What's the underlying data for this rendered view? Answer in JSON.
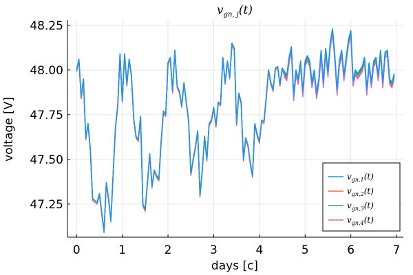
{
  "chart_data": {
    "type": "line",
    "title": "v_{gn, j}(t)",
    "title_display": "vgn, j(t)",
    "xlabel": "days [c]",
    "ylabel": "voltage [V]",
    "xlim": [
      -0.2,
      7.15
    ],
    "ylim": [
      47.065,
      48.28
    ],
    "xticks": [
      0,
      1,
      2,
      3,
      4,
      5,
      6,
      7
    ],
    "xtick_labels": [
      "0",
      "1",
      "2",
      "3",
      "4",
      "5",
      "6",
      "7"
    ],
    "yticks": [
      47.25,
      47.5,
      47.75,
      48.0,
      48.25
    ],
    "ytick_labels": [
      "47.25",
      "47.50",
      "47.75",
      "48.00",
      "48.25"
    ],
    "grid": true,
    "legend_position": "bottom-right",
    "x": [
      0,
      0.05,
      0.1,
      0.15,
      0.2,
      0.25,
      0.3,
      0.35,
      0.4,
      0.45,
      0.5,
      0.55,
      0.6,
      0.65,
      0.7,
      0.75,
      0.8,
      0.85,
      0.9,
      0.95,
      1.0,
      1.05,
      1.1,
      1.15,
      1.2,
      1.25,
      1.3,
      1.35,
      1.4,
      1.45,
      1.5,
      1.55,
      1.6,
      1.65,
      1.7,
      1.75,
      1.8,
      1.85,
      1.9,
      1.95,
      2.0,
      2.05,
      2.1,
      2.15,
      2.2,
      2.25,
      2.3,
      2.35,
      2.4,
      2.45,
      2.5,
      2.55,
      2.6,
      2.65,
      2.7,
      2.75,
      2.8,
      2.85,
      2.9,
      2.95,
      3.0,
      3.05,
      3.1,
      3.15,
      3.2,
      3.25,
      3.3,
      3.35,
      3.4,
      3.45,
      3.5,
      3.55,
      3.6,
      3.65,
      3.7,
      3.75,
      3.8,
      3.85,
      3.9,
      3.95,
      4.0,
      4.05,
      4.1,
      4.15,
      4.2,
      4.25,
      4.3,
      4.35,
      4.4,
      4.45,
      4.5,
      4.55,
      4.6,
      4.65,
      4.7,
      4.75,
      4.8,
      4.85,
      4.9,
      4.95,
      5.0,
      5.05,
      5.1,
      5.15,
      5.2,
      5.25,
      5.3,
      5.35,
      5.4,
      5.45,
      5.5,
      5.55,
      5.6,
      5.65,
      5.7,
      5.75,
      5.8,
      5.85,
      5.9,
      5.95,
      6.0,
      6.05,
      6.1,
      6.15,
      6.2,
      6.25,
      6.3,
      6.35,
      6.4,
      6.45,
      6.5,
      6.55,
      6.6,
      6.65,
      6.7,
      6.75,
      6.8,
      6.85,
      6.9,
      6.95
    ],
    "series": [
      {
        "name": "v_{gn,1}(t)",
        "name_display": "vgn,1(t)",
        "color": "#009AFA",
        "values": [
          48.0,
          48.06,
          47.85,
          47.95,
          47.62,
          47.7,
          47.56,
          47.28,
          47.27,
          47.26,
          47.31,
          47.2,
          47.1,
          47.37,
          47.28,
          47.16,
          47.42,
          47.68,
          47.8,
          48.09,
          47.83,
          48.09,
          47.92,
          48.06,
          47.97,
          47.73,
          47.63,
          47.61,
          47.74,
          47.25,
          47.22,
          47.37,
          47.53,
          47.35,
          47.44,
          47.41,
          47.39,
          47.6,
          47.77,
          47.75,
          48.04,
          48.07,
          47.88,
          48.11,
          47.91,
          47.88,
          47.8,
          47.93,
          47.82,
          47.72,
          47.42,
          47.5,
          47.57,
          47.66,
          47.3,
          47.44,
          47.63,
          47.5,
          47.7,
          47.72,
          47.79,
          47.69,
          47.82,
          47.81,
          48.07,
          47.93,
          48.05,
          47.96,
          48.15,
          48.12,
          47.7,
          47.87,
          47.82,
          47.5,
          47.62,
          47.58,
          47.48,
          47.41,
          47.7,
          47.64,
          47.6,
          47.72,
          47.71,
          47.85,
          48.0,
          47.93,
          47.89,
          48.01,
          48.02,
          47.92,
          48.01,
          47.99,
          47.97,
          48.07,
          48.13,
          47.86,
          48.0,
          47.95,
          48.05,
          47.88,
          48.05,
          48.08,
          48.05,
          47.93,
          48.0,
          47.87,
          47.95,
          48.11,
          47.93,
          48.12,
          47.99,
          48.15,
          48.23,
          48.08,
          47.89,
          48.05,
          48.11,
          47.97,
          48.07,
          48.17,
          48.22,
          47.94,
          48.0,
          47.98,
          48.0,
          48.02,
          48.07,
          47.89,
          48.04,
          47.93,
          48.05,
          48.07,
          47.97,
          48.11,
          47.93,
          48.1,
          48.11,
          47.95,
          47.93,
          47.98
        ]
      },
      {
        "name": "v_{gn,2}(t)",
        "name_display": "vgn,2(t)",
        "color": "#E26F46",
        "values": [
          47.99,
          48.05,
          47.84,
          47.94,
          47.61,
          47.69,
          47.55,
          47.27,
          47.26,
          47.25,
          47.3,
          47.19,
          47.09,
          47.36,
          47.27,
          47.15,
          47.41,
          47.67,
          47.79,
          48.08,
          47.82,
          48.08,
          47.91,
          48.05,
          47.96,
          47.72,
          47.62,
          47.6,
          47.73,
          47.24,
          47.21,
          47.36,
          47.52,
          47.34,
          47.43,
          47.4,
          47.38,
          47.59,
          47.76,
          47.74,
          48.03,
          48.06,
          47.87,
          48.1,
          47.9,
          47.87,
          47.79,
          47.92,
          47.81,
          47.71,
          47.41,
          47.49,
          47.56,
          47.65,
          47.29,
          47.43,
          47.62,
          47.49,
          47.69,
          47.71,
          47.78,
          47.68,
          47.81,
          47.8,
          48.06,
          47.92,
          48.04,
          47.95,
          48.14,
          48.11,
          47.69,
          47.86,
          47.81,
          47.49,
          47.61,
          47.57,
          47.47,
          47.4,
          47.69,
          47.63,
          47.59,
          47.71,
          47.7,
          47.84,
          47.99,
          47.92,
          47.88,
          48.0,
          48.01,
          47.91,
          48.0,
          47.97,
          47.95,
          48.05,
          48.11,
          47.84,
          47.98,
          47.93,
          48.03,
          47.86,
          48.03,
          48.06,
          48.03,
          47.91,
          47.98,
          47.85,
          47.93,
          48.09,
          47.91,
          48.1,
          47.97,
          48.13,
          48.21,
          48.06,
          47.87,
          48.03,
          48.09,
          47.95,
          48.05,
          48.15,
          48.2,
          47.92,
          47.98,
          47.96,
          47.98,
          48.0,
          48.05,
          47.87,
          48.02,
          47.91,
          48.03,
          48.05,
          47.95,
          48.09,
          47.91,
          48.08,
          48.09,
          47.93,
          47.91,
          47.96
        ]
      },
      {
        "name": "v_{gn,3}(t)",
        "name_display": "vgn,3(t)",
        "color": "#3DA44D",
        "values": [
          48.0,
          48.06,
          47.85,
          47.95,
          47.62,
          47.7,
          47.56,
          47.28,
          47.27,
          47.26,
          47.31,
          47.2,
          47.1,
          47.37,
          47.28,
          47.16,
          47.42,
          47.68,
          47.8,
          48.09,
          47.83,
          48.09,
          47.92,
          48.06,
          47.97,
          47.73,
          47.63,
          47.61,
          47.74,
          47.25,
          47.22,
          47.37,
          47.53,
          47.35,
          47.44,
          47.41,
          47.39,
          47.6,
          47.77,
          47.75,
          48.04,
          48.07,
          47.88,
          48.11,
          47.91,
          47.88,
          47.8,
          47.93,
          47.82,
          47.72,
          47.42,
          47.5,
          47.57,
          47.66,
          47.3,
          47.44,
          47.63,
          47.5,
          47.7,
          47.72,
          47.79,
          47.69,
          47.82,
          47.81,
          48.07,
          47.93,
          48.05,
          47.96,
          48.15,
          48.12,
          47.7,
          47.87,
          47.82,
          47.5,
          47.62,
          47.58,
          47.48,
          47.41,
          47.7,
          47.64,
          47.6,
          47.72,
          47.71,
          47.85,
          48.0,
          47.93,
          47.89,
          48.01,
          48.02,
          47.92,
          48.01,
          47.98,
          47.96,
          48.06,
          48.12,
          47.85,
          47.99,
          47.94,
          48.04,
          47.87,
          48.04,
          48.07,
          48.04,
          47.92,
          47.99,
          47.86,
          47.94,
          48.1,
          47.92,
          48.11,
          47.98,
          48.14,
          48.22,
          48.07,
          47.88,
          48.04,
          48.1,
          47.96,
          48.06,
          48.16,
          48.21,
          47.93,
          47.99,
          47.97,
          47.99,
          48.01,
          48.06,
          47.88,
          48.03,
          47.92,
          48.04,
          48.06,
          47.96,
          48.1,
          47.92,
          48.09,
          48.1,
          47.94,
          47.92,
          47.97
        ]
      },
      {
        "name": "v_{gn,4}(t)",
        "name_display": "vgn,4(t)",
        "color": "#C271D2",
        "values": [
          48.0,
          48.06,
          47.85,
          47.95,
          47.62,
          47.7,
          47.56,
          47.28,
          47.27,
          47.26,
          47.31,
          47.2,
          47.1,
          47.37,
          47.28,
          47.16,
          47.42,
          47.68,
          47.8,
          48.09,
          47.83,
          48.09,
          47.92,
          48.06,
          47.97,
          47.73,
          47.63,
          47.61,
          47.74,
          47.25,
          47.22,
          47.37,
          47.53,
          47.35,
          47.44,
          47.41,
          47.39,
          47.6,
          47.77,
          47.75,
          48.04,
          48.07,
          47.88,
          48.11,
          47.91,
          47.88,
          47.8,
          47.93,
          47.82,
          47.72,
          47.42,
          47.5,
          47.57,
          47.66,
          47.3,
          47.44,
          47.63,
          47.5,
          47.7,
          47.72,
          47.79,
          47.69,
          47.82,
          47.81,
          48.07,
          47.93,
          48.05,
          47.96,
          48.15,
          48.12,
          47.7,
          47.87,
          47.82,
          47.5,
          47.62,
          47.58,
          47.48,
          47.41,
          47.7,
          47.64,
          47.6,
          47.72,
          47.71,
          47.85,
          48.0,
          47.93,
          47.89,
          48.01,
          48.02,
          47.92,
          48.01,
          47.96,
          47.94,
          48.04,
          48.1,
          47.83,
          47.97,
          47.92,
          48.02,
          47.85,
          48.02,
          48.05,
          48.02,
          47.9,
          47.97,
          47.84,
          47.92,
          48.08,
          47.9,
          48.09,
          47.96,
          48.12,
          48.2,
          48.05,
          47.86,
          48.02,
          48.08,
          47.94,
          48.04,
          48.14,
          48.19,
          47.91,
          47.97,
          47.95,
          47.97,
          47.99,
          48.04,
          47.86,
          48.01,
          47.9,
          48.02,
          48.04,
          47.94,
          48.08,
          47.9,
          48.07,
          48.08,
          47.92,
          47.9,
          47.95
        ]
      }
    ]
  }
}
